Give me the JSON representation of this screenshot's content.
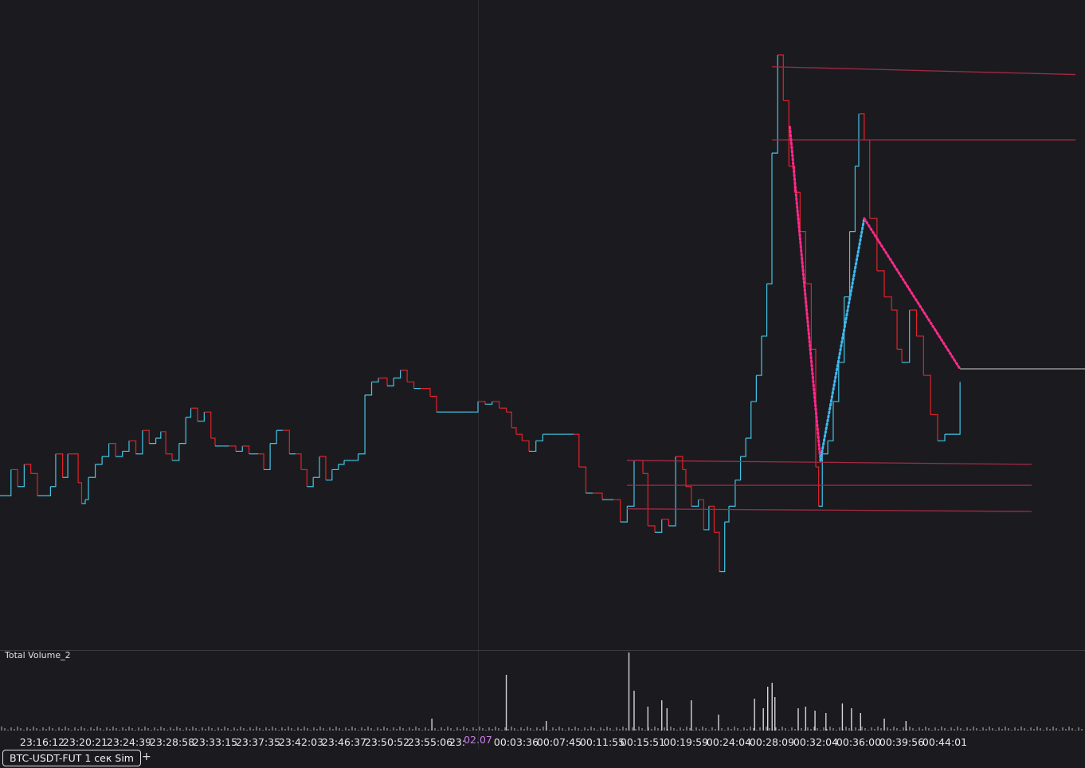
{
  "chart_data": [
    {
      "type": "line",
      "title": "",
      "series": [
        {
          "color": "#44c4e6",
          "down_color": "#e0222a",
          "points": [
            [
              "23:13:00",
              -52
            ],
            [
              "23:13:50",
              -32
            ],
            [
              "23:14:20",
              -45
            ],
            [
              "23:14:50",
              -28
            ],
            [
              "23:15:20",
              -35
            ],
            [
              "23:15:50",
              -52
            ],
            [
              "23:16:12",
              -52
            ],
            [
              "23:17:00",
              -45
            ],
            [
              "23:17:30",
              -20
            ],
            [
              "23:18:10",
              -38
            ],
            [
              "23:18:40",
              -20
            ],
            [
              "23:19:40",
              -42
            ],
            [
              "23:20:00",
              -58
            ],
            [
              "23:20:21",
              -55
            ],
            [
              "23:20:40",
              -38
            ],
            [
              "23:21:20",
              -28
            ],
            [
              "23:22:00",
              -22
            ],
            [
              "23:22:40",
              -12
            ],
            [
              "23:23:20",
              -22
            ],
            [
              "23:24:00",
              -18
            ],
            [
              "23:24:39",
              -10
            ],
            [
              "23:25:20",
              -20
            ],
            [
              "23:26:00",
              -2
            ],
            [
              "23:26:40",
              -12
            ],
            [
              "23:27:20",
              -8
            ],
            [
              "23:27:50",
              -3
            ],
            [
              "23:28:20",
              -20
            ],
            [
              "23:28:58",
              -25
            ],
            [
              "23:29:40",
              -12
            ],
            [
              "23:30:20",
              8
            ],
            [
              "23:30:50",
              15
            ],
            [
              "23:31:30",
              5
            ],
            [
              "23:32:10",
              12
            ],
            [
              "23:32:50",
              -8
            ],
            [
              "23:33:15",
              -14
            ],
            [
              "23:34:00",
              -14
            ],
            [
              "23:34:40",
              -14
            ],
            [
              "23:35:20",
              -18
            ],
            [
              "23:36:00",
              -14
            ],
            [
              "23:36:40",
              -20
            ],
            [
              "23:37:35",
              -20
            ],
            [
              "23:38:10",
              -32
            ],
            [
              "23:38:50",
              -12
            ],
            [
              "23:39:30",
              -2
            ],
            [
              "23:40:10",
              -2
            ],
            [
              "23:40:50",
              -20
            ],
            [
              "23:41:30",
              -20
            ],
            [
              "23:42:03",
              -32
            ],
            [
              "23:42:40",
              -45
            ],
            [
              "23:43:20",
              -38
            ],
            [
              "23:44:00",
              -22
            ],
            [
              "23:44:40",
              -40
            ],
            [
              "23:45:20",
              -32
            ],
            [
              "23:46:00",
              -28
            ],
            [
              "23:46:37",
              -25
            ],
            [
              "23:47:20",
              -25
            ],
            [
              "23:48:00",
              -20
            ],
            [
              "23:48:40",
              25
            ],
            [
              "23:49:20",
              35
            ],
            [
              "23:50:00",
              38
            ],
            [
              "23:50:52",
              32
            ],
            [
              "23:51:30",
              38
            ],
            [
              "23:52:10",
              44
            ],
            [
              "23:52:50",
              35
            ],
            [
              "23:53:30",
              30
            ],
            [
              "23:54:10",
              30
            ],
            [
              "23:55:06",
              24
            ],
            [
              "23:55:40",
              12
            ],
            [
              "23:56:30",
              12
            ],
            [
              "23:57:30",
              12
            ],
            [
              "23:58:30",
              12
            ],
            [
              "23:59:30",
              12
            ],
            [
              "00:00:00",
              20
            ],
            [
              "00:00:40",
              18
            ],
            [
              "00:01:20",
              20
            ],
            [
              "00:02:00",
              15
            ],
            [
              "00:02:40",
              12
            ],
            [
              "00:03:10",
              0
            ],
            [
              "00:03:36",
              -5
            ],
            [
              "00:04:10",
              -10
            ],
            [
              "00:04:50",
              -18
            ],
            [
              "00:05:30",
              -10
            ],
            [
              "00:06:10",
              -5
            ],
            [
              "00:07:00",
              -5
            ],
            [
              "00:07:45",
              -5
            ],
            [
              "00:08:30",
              -5
            ],
            [
              "00:09:10",
              -5
            ],
            [
              "00:09:40",
              -30
            ],
            [
              "00:10:20",
              -50
            ],
            [
              "00:11:00",
              -50
            ],
            [
              "00:11:55",
              -55
            ],
            [
              "00:12:30",
              -55
            ],
            [
              "00:13:00",
              -55
            ],
            [
              "00:13:40",
              -72
            ],
            [
              "00:14:20",
              -60
            ],
            [
              "00:15:00",
              -25
            ],
            [
              "00:15:51",
              -35
            ],
            [
              "00:16:20",
              -75
            ],
            [
              "00:17:00",
              -80
            ],
            [
              "00:17:40",
              -70
            ],
            [
              "00:18:20",
              -75
            ],
            [
              "00:19:00",
              -22
            ],
            [
              "00:19:40",
              -32
            ],
            [
              "00:19:59",
              -45
            ],
            [
              "00:20:30",
              -60
            ],
            [
              "00:21:10",
              -55
            ],
            [
              "00:21:40",
              -78
            ],
            [
              "00:22:10",
              -60
            ],
            [
              "00:22:40",
              -80
            ],
            [
              "00:23:10",
              -110
            ],
            [
              "00:23:40",
              -72
            ],
            [
              "00:24:04",
              -60
            ],
            [
              "00:24:40",
              -40
            ],
            [
              "00:25:10",
              -22
            ],
            [
              "00:25:40",
              -8
            ],
            [
              "00:26:10",
              20
            ],
            [
              "00:26:40",
              40
            ],
            [
              "00:27:10",
              70
            ],
            [
              "00:27:40",
              110
            ],
            [
              "00:28:09",
              210
            ],
            [
              "00:28:40",
              285
            ],
            [
              "00:29:10",
              250
            ],
            [
              "00:29:40",
              200
            ],
            [
              "00:30:10",
              180
            ],
            [
              "00:30:40",
              150
            ],
            [
              "00:31:10",
              110
            ],
            [
              "00:31:40",
              60
            ],
            [
              "00:32:04",
              -30
            ],
            [
              "00:32:20",
              -60
            ],
            [
              "00:32:40",
              -20
            ],
            [
              "00:33:10",
              -10
            ],
            [
              "00:33:40",
              20
            ],
            [
              "00:34:10",
              50
            ],
            [
              "00:34:40",
              100
            ],
            [
              "00:35:10",
              150
            ],
            [
              "00:35:40",
              200
            ],
            [
              "00:36:00",
              240
            ],
            [
              "00:36:30",
              220
            ],
            [
              "00:37:00",
              160
            ],
            [
              "00:37:40",
              120
            ],
            [
              "00:38:20",
              100
            ],
            [
              "00:39:00",
              90
            ],
            [
              "00:39:30",
              60
            ],
            [
              "00:39:56",
              50
            ],
            [
              "00:40:40",
              90
            ],
            [
              "00:41:20",
              70
            ],
            [
              "00:42:00",
              40
            ],
            [
              "00:42:40",
              10
            ],
            [
              "00:43:20",
              -10
            ],
            [
              "00:44:01",
              -5
            ],
            [
              "00:44:40",
              35
            ]
          ]
        }
      ],
      "drawings": {
        "horizontal_rays": [
          {
            "start": "00:28:09",
            "y_start": 276,
            "y_end": 270,
            "color": "#a32a44"
          },
          {
            "start": "00:28:09",
            "y_start": 220,
            "y_end": 220,
            "color": "#a32a44"
          },
          {
            "start": "00:15:51",
            "y_start": -25,
            "y_end": -28,
            "color": "#a32a44"
          },
          {
            "start": "00:15:51",
            "y_start": -44,
            "y_end": -44,
            "color": "#a32a44"
          },
          {
            "start": "00:15:51",
            "y_start": -62,
            "y_end": -64,
            "color": "#a32a44"
          }
        ],
        "dotted_trendlines": [
          {
            "from": [
              "00:29:45",
              230
            ],
            "to": [
              "00:32:30",
              -25
            ],
            "color": "#ff2a8a"
          },
          {
            "from": [
              "00:32:30",
              -25
            ],
            "to": [
              "00:36:30",
              160
            ],
            "color": "#3fb8ee"
          },
          {
            "from": [
              "00:36:30",
              160
            ],
            "to": [
              "00:44:40",
              45
            ],
            "color": "#ff2a8a"
          }
        ],
        "last_price_line": {
          "value": 45,
          "color": "#cfcfcf"
        }
      },
      "xlim": [
        "23:13:00",
        "00:50:00"
      ],
      "ylim": [
        -170,
        327
      ],
      "grid": false
    },
    {
      "type": "bar",
      "label": "Total Volume_2",
      "color": "#d6d6d6",
      "bars": [
        [
          "23:55:15",
          15
        ],
        [
          "00:02:40",
          70
        ],
        [
          "00:06:30",
          12
        ],
        [
          "00:14:30",
          98
        ],
        [
          "00:15:00",
          50
        ],
        [
          "00:16:20",
          30
        ],
        [
          "00:17:40",
          38
        ],
        [
          "00:18:10",
          28
        ],
        [
          "00:20:30",
          38
        ],
        [
          "00:23:05",
          20
        ],
        [
          "00:26:30",
          40
        ],
        [
          "00:27:20",
          28
        ],
        [
          "00:27:45",
          55
        ],
        [
          "00:28:10",
          60
        ],
        [
          "00:28:25",
          42
        ],
        [
          "00:30:30",
          28
        ],
        [
          "00:31:10",
          30
        ],
        [
          "00:32:00",
          25
        ],
        [
          "00:33:00",
          22
        ],
        [
          "00:34:30",
          34
        ],
        [
          "00:35:20",
          28
        ],
        [
          "00:36:10",
          22
        ],
        [
          "00:38:20",
          15
        ],
        [
          "00:40:20",
          12
        ]
      ],
      "ylim": [
        0,
        100
      ]
    }
  ],
  "time_axis": {
    "ticks": [
      "23:16:12",
      "23:20:21",
      "23:24:39",
      "23:28:58",
      "23:33:15",
      "23:37:35",
      "23:42:03",
      "23:46:37",
      "23:50:52",
      "23:55:06",
      "23:",
      "02.07",
      "00:03:36",
      "00:07:45",
      "00:11:55",
      "00:15:51",
      "00:19:59",
      "00:24:04",
      "00:28:09",
      "00:32:04",
      "00:36:00",
      "00:39:56",
      "00:44:01"
    ]
  },
  "tabs": {
    "active": "BTC-USDT-FUT 1 сек Sim",
    "add": "+"
  }
}
